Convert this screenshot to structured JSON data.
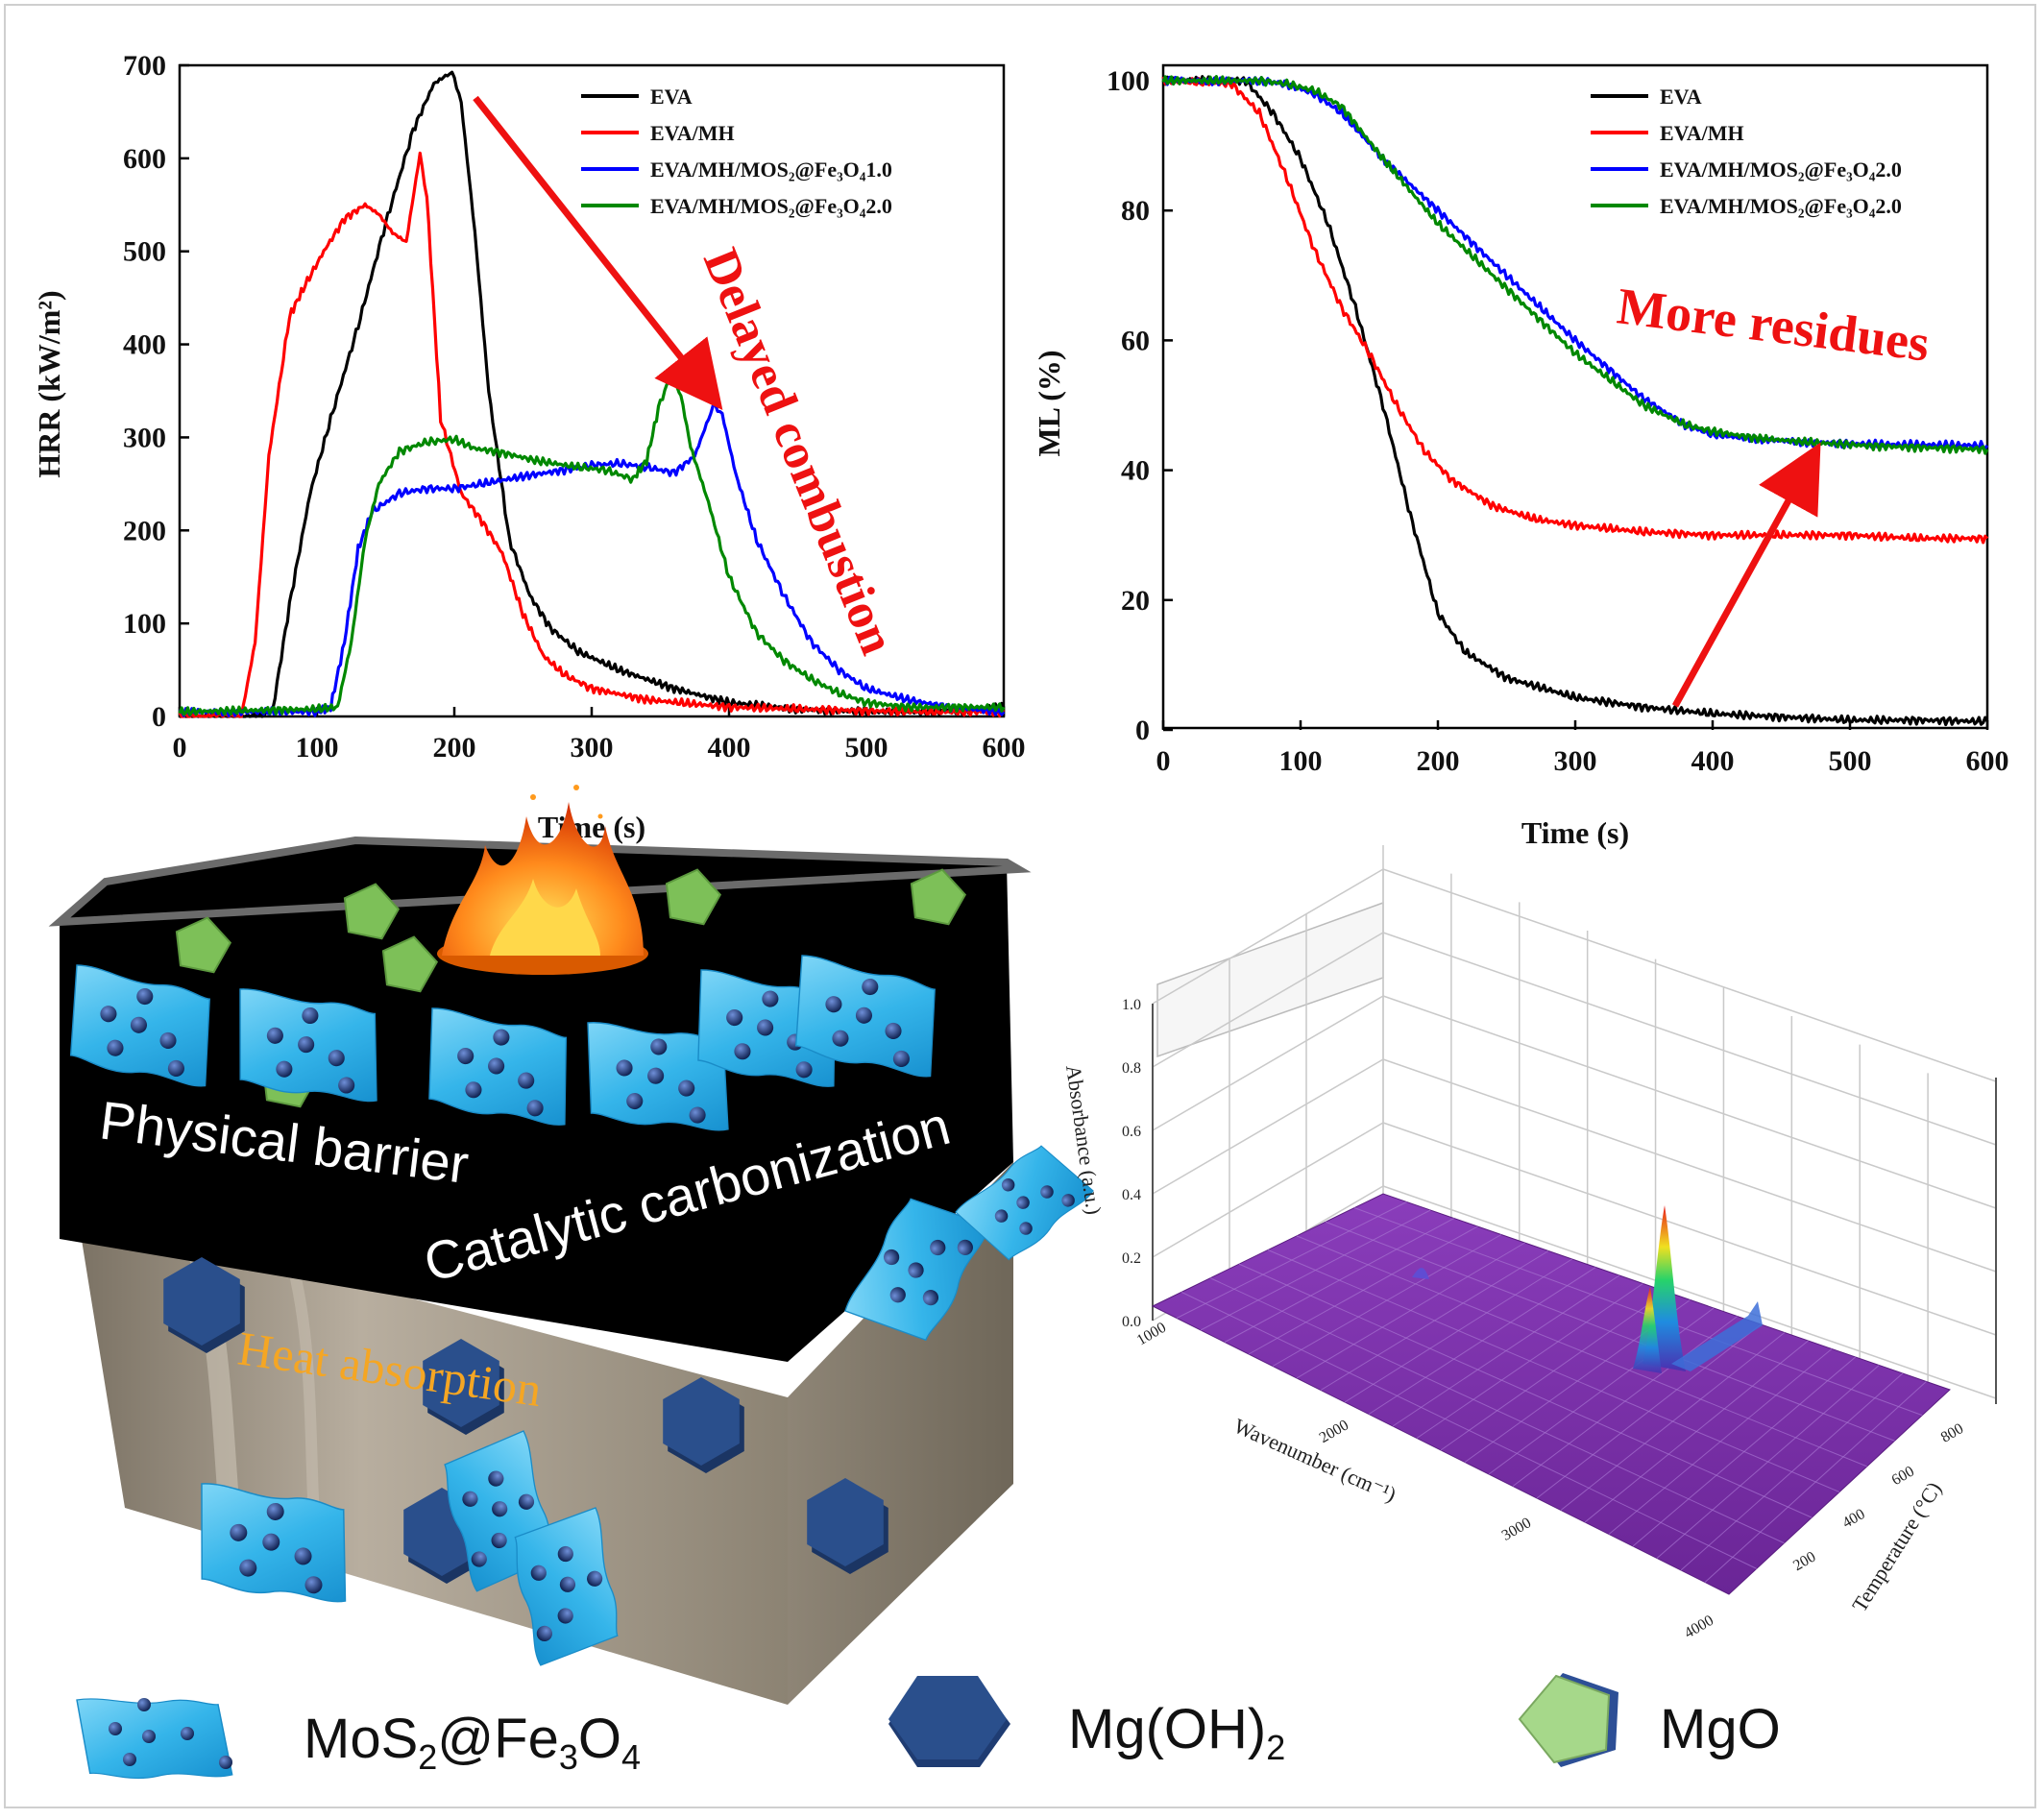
{
  "chart_data": [
    {
      "type": "line",
      "xlabel": "Time (s)",
      "ylabel": "HRR (kW/m²)",
      "xlim": [
        0,
        600
      ],
      "ylim": [
        0,
        700
      ],
      "xticks": [
        "0",
        "100",
        "200",
        "300",
        "400",
        "500",
        "600"
      ],
      "yticks": [
        "0",
        "100",
        "200",
        "300",
        "400",
        "500",
        "600",
        "700"
      ],
      "legend_position": "top-right",
      "annotation": "Delayed combustion",
      "series": [
        {
          "name": "EVA",
          "color": "#000000",
          "x": [
            0,
            60,
            68,
            80,
            95,
            110,
            130,
            150,
            170,
            185,
            195,
            200,
            205,
            215,
            225,
            240,
            255,
            270,
            290,
            320,
            360,
            400,
            450,
            500,
            550,
            600
          ],
          "y": [
            0,
            0,
            8,
            120,
            240,
            320,
            420,
            530,
            630,
            680,
            690,
            688,
            660,
            520,
            350,
            190,
            130,
            95,
            70,
            50,
            30,
            15,
            8,
            5,
            5,
            10
          ]
        },
        {
          "name": "EVA/MH",
          "color": "#ff0000",
          "x": [
            0,
            45,
            55,
            65,
            80,
            90,
            105,
            120,
            135,
            145,
            155,
            165,
            175,
            180,
            190,
            205,
            220,
            235,
            250,
            265,
            280,
            300,
            340,
            400,
            450,
            500,
            550,
            600
          ],
          "y": [
            0,
            0,
            80,
            280,
            430,
            460,
            500,
            535,
            550,
            540,
            520,
            510,
            605,
            560,
            320,
            240,
            210,
            175,
            110,
            65,
            45,
            30,
            18,
            10,
            8,
            6,
            5,
            5
          ]
        },
        {
          "name": "EVA/MH/MOS₂@Fe₃O₄1.0",
          "color": "#0000ff",
          "x": [
            0,
            100,
            110,
            120,
            130,
            140,
            160,
            180,
            200,
            220,
            250,
            280,
            300,
            320,
            340,
            360,
            375,
            385,
            390,
            395,
            405,
            420,
            440,
            460,
            480,
            500,
            530,
            560,
            600
          ],
          "y": [
            5,
            5,
            10,
            80,
            180,
            220,
            240,
            245,
            245,
            250,
            258,
            265,
            270,
            272,
            268,
            262,
            280,
            320,
            335,
            325,
            260,
            190,
            130,
            80,
            50,
            30,
            18,
            10,
            5
          ]
        },
        {
          "name": "EVA/MH/MOS₂@Fe₃O₄2.0",
          "color": "#008800",
          "x": [
            0,
            100,
            115,
            125,
            135,
            145,
            160,
            180,
            200,
            215,
            230,
            260,
            290,
            310,
            330,
            340,
            350,
            358,
            365,
            372,
            385,
            400,
            420,
            440,
            460,
            480,
            500,
            530,
            600
          ],
          "y": [
            5,
            8,
            10,
            80,
            190,
            250,
            285,
            295,
            298,
            288,
            285,
            275,
            268,
            265,
            255,
            275,
            340,
            365,
            345,
            290,
            230,
            150,
            90,
            60,
            40,
            25,
            15,
            10,
            10
          ]
        }
      ]
    },
    {
      "type": "line",
      "xlabel": "Time (s)",
      "ylabel": "ML (%)",
      "xlim": [
        0,
        600
      ],
      "ylim": [
        0,
        100
      ],
      "xticks": [
        "0",
        "100",
        "200",
        "300",
        "400",
        "500",
        "600"
      ],
      "yticks": [
        "0",
        "20",
        "40",
        "60",
        "80",
        "100"
      ],
      "legend_position": "top-right",
      "annotation": "More residues",
      "series": [
        {
          "name": "EVA",
          "color": "#000000",
          "x": [
            0,
            60,
            80,
            100,
            120,
            140,
            160,
            180,
            200,
            220,
            250,
            300,
            350,
            400,
            450,
            500,
            550,
            600
          ],
          "y": [
            100,
            100,
            95,
            88,
            78,
            65,
            50,
            33,
            18,
            12,
            8,
            5,
            3.5,
            2.5,
            2,
            1.5,
            1.5,
            1.3
          ]
        },
        {
          "name": "EVA/MH",
          "color": "#ff0000",
          "x": [
            0,
            50,
            70,
            90,
            110,
            130,
            150,
            170,
            190,
            210,
            240,
            270,
            300,
            350,
            400,
            450,
            500,
            550,
            600
          ],
          "y": [
            100,
            99.5,
            95,
            85,
            74,
            65,
            58,
            50,
            43,
            38.5,
            34.5,
            32.5,
            31.5,
            30.5,
            30,
            30,
            30,
            29.5,
            29.5
          ]
        },
        {
          "name": "EVA/MH/MOS₂@Fe₃O₄2.0",
          "color": "#0000ff",
          "x": [
            0,
            70,
            90,
            110,
            130,
            160,
            200,
            250,
            300,
            350,
            380,
            400,
            430,
            470,
            520,
            600
          ],
          "y": [
            100,
            100,
            99.5,
            98,
            95,
            88,
            80,
            70,
            60,
            51,
            47,
            45.5,
            44.8,
            44.3,
            44,
            43.8
          ]
        },
        {
          "name": "EVA/MH/MOS₂@Fe₃O₄2.0",
          "color": "#008800",
          "x": [
            0,
            70,
            90,
            110,
            130,
            160,
            200,
            250,
            300,
            350,
            380,
            400,
            430,
            470,
            520,
            600
          ],
          "y": [
            100,
            100,
            99.5,
            98.5,
            96,
            88,
            78,
            68,
            58,
            50,
            47,
            46,
            45,
            44.3,
            43.7,
            43.2
          ]
        }
      ]
    },
    {
      "type": "surface",
      "zlabel": "Absorbance (a.u.)",
      "xlabel": "Wavenumber (cm⁻¹)",
      "ylabel": "Temperature (°C)",
      "zticks": [
        "0.0",
        "0.2",
        "0.4",
        "0.6",
        "0.8",
        "1.0"
      ],
      "xticks": [
        "1000",
        "2000",
        "3000",
        "4000"
      ],
      "yticks": [
        "200",
        "400",
        "600",
        "800"
      ],
      "surface_color": "#7a2fa8",
      "peak_absorbance": 0.38
    }
  ],
  "schematic": {
    "labels": {
      "physical_barrier": "Physical barrier",
      "catalytic_carbonization": "Catalytic carbonization",
      "heat_absorption": "Heat absorption"
    },
    "legend": {
      "mos2_fe3o4": {
        "base": "MoS",
        "sub1": "2",
        "mid": "@Fe",
        "sub2": "3",
        "mid2": "O",
        "sub3": "4"
      },
      "mgoh2": {
        "base": "Mg(OH)",
        "sub1": "2"
      },
      "mgo": "MgO"
    },
    "colors": {
      "sheet": "#35b5ea",
      "hexagon": "#2a4f8c",
      "pentagon": "#7dc058",
      "char": "#000000",
      "box": "#8a8173",
      "heat_text": "#f5a623"
    }
  }
}
